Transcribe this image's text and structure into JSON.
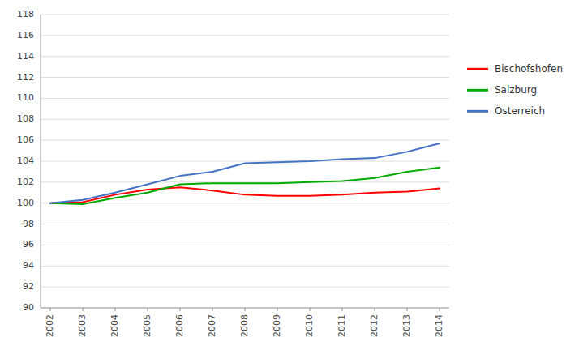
{
  "chart_data": {
    "type": "line",
    "x": [
      2002,
      2003,
      2004,
      2005,
      2006,
      2007,
      2008,
      2009,
      2010,
      2011,
      2012,
      2013,
      2014
    ],
    "xlim": [
      2001.7,
      2014.3
    ],
    "xticks": [
      2002,
      2003,
      2004,
      2005,
      2006,
      2007,
      2008,
      2009,
      2010,
      2011,
      2012,
      2013,
      2014
    ],
    "ylim": [
      90,
      118
    ],
    "yticks": [
      90,
      92,
      94,
      96,
      98,
      100,
      102,
      104,
      106,
      108,
      110,
      112,
      114,
      116,
      118
    ],
    "grid": true,
    "legend": "right",
    "series": [
      {
        "name": "Bischofshofen",
        "color": "#FF0000",
        "values": [
          100.0,
          100.1,
          100.8,
          101.3,
          101.5,
          101.2,
          100.8,
          100.7,
          100.7,
          100.8,
          101.0,
          101.1,
          101.4
        ]
      },
      {
        "name": "Salzburg",
        "color": "#00AA00",
        "values": [
          100.0,
          99.9,
          100.5,
          101.0,
          101.8,
          101.9,
          101.9,
          101.9,
          102.0,
          102.1,
          102.4,
          103.0,
          103.4
        ]
      },
      {
        "name": "Österreich",
        "color": "#4472C4",
        "values": [
          100.0,
          100.3,
          101.0,
          101.8,
          102.6,
          103.0,
          103.8,
          103.9,
          104.0,
          104.2,
          104.3,
          104.9,
          105.7
        ]
      }
    ]
  }
}
